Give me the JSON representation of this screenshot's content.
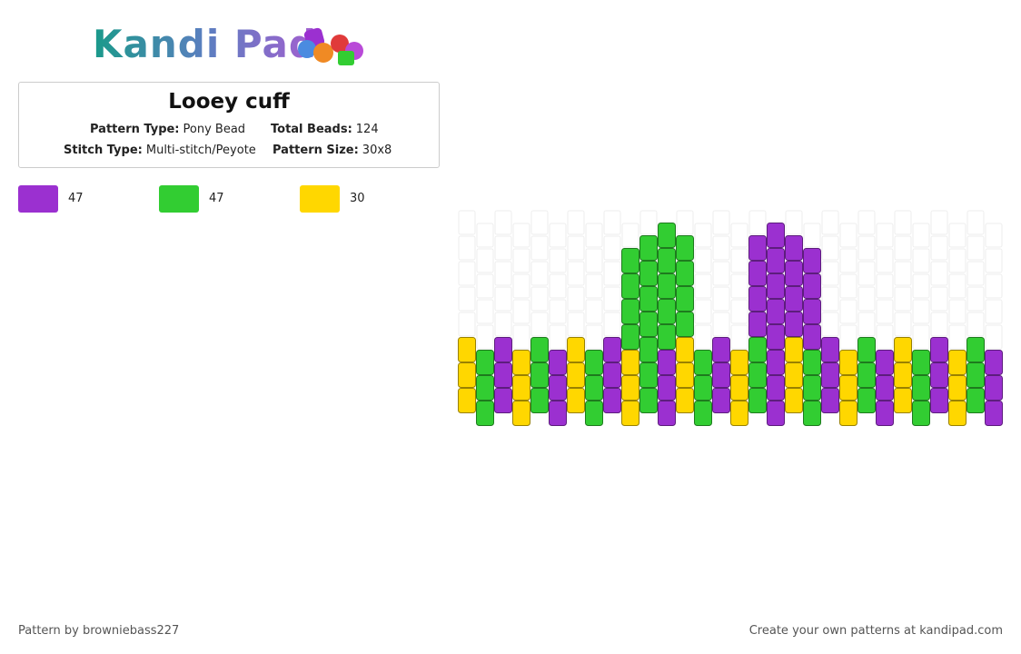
{
  "logo": "Kandi Pad",
  "title": "Looey cuff",
  "fields": [
    {
      "label": "Pattern Type:",
      "value": "Pony Bead"
    },
    {
      "label": "Total Beads:",
      "value": 124
    },
    {
      "label": "Stitch Type:",
      "value": "Multi-stitch/Peyote"
    },
    {
      "label": "Pattern Size:",
      "value": "30x8"
    }
  ],
  "palette": [
    {
      "color": "#9b30d0",
      "count": 47
    },
    {
      "color": "#32cd32",
      "count": 47
    },
    {
      "color": "#ffd700",
      "count": 30
    }
  ],
  "columns": [
    [
      null,
      null,
      null,
      null,
      null,
      2,
      2,
      2
    ],
    [
      null,
      null,
      null,
      null,
      null,
      1,
      1,
      1
    ],
    [
      null,
      null,
      null,
      null,
      null,
      0,
      0,
      0
    ],
    [
      null,
      null,
      null,
      null,
      null,
      2,
      2,
      2
    ],
    [
      null,
      null,
      null,
      null,
      null,
      1,
      1,
      1
    ],
    [
      null,
      null,
      null,
      null,
      null,
      0,
      0,
      0
    ],
    [
      null,
      null,
      null,
      null,
      null,
      2,
      2,
      2
    ],
    [
      null,
      null,
      null,
      null,
      null,
      1,
      1,
      1
    ],
    [
      null,
      null,
      null,
      null,
      null,
      0,
      0,
      0
    ],
    [
      null,
      1,
      1,
      1,
      1,
      2,
      2,
      2
    ],
    [
      null,
      1,
      1,
      1,
      1,
      1,
      1,
      1
    ],
    [
      1,
      1,
      1,
      1,
      1,
      0,
      0,
      0
    ],
    [
      null,
      1,
      1,
      1,
      1,
      2,
      2,
      2
    ],
    [
      null,
      null,
      null,
      null,
      null,
      1,
      1,
      1
    ],
    [
      null,
      null,
      null,
      null,
      null,
      0,
      0,
      0
    ],
    [
      null,
      null,
      null,
      null,
      null,
      2,
      2,
      2
    ],
    [
      null,
      0,
      0,
      0,
      0,
      1,
      1,
      1
    ],
    [
      0,
      0,
      0,
      0,
      0,
      0,
      0,
      0
    ],
    [
      null,
      0,
      0,
      0,
      0,
      2,
      2,
      2
    ],
    [
      null,
      0,
      0,
      0,
      0,
      1,
      1,
      1
    ],
    [
      null,
      null,
      null,
      null,
      null,
      0,
      0,
      0
    ],
    [
      null,
      null,
      null,
      null,
      null,
      2,
      2,
      2
    ],
    [
      null,
      null,
      null,
      null,
      null,
      1,
      1,
      1
    ],
    [
      null,
      null,
      null,
      null,
      null,
      0,
      0,
      0
    ],
    [
      null,
      null,
      null,
      null,
      null,
      2,
      2,
      2
    ],
    [
      null,
      null,
      null,
      null,
      null,
      1,
      1,
      1
    ],
    [
      null,
      null,
      null,
      null,
      null,
      0,
      0,
      0
    ],
    [
      null,
      null,
      null,
      null,
      null,
      2,
      2,
      2
    ],
    [
      null,
      null,
      null,
      null,
      null,
      1,
      1,
      1
    ],
    [
      null,
      null,
      null,
      null,
      null,
      0,
      0,
      0
    ]
  ],
  "footer": {
    "credit": "Pattern by browniebass227",
    "link": "Create your own patterns at kandipad.com"
  }
}
